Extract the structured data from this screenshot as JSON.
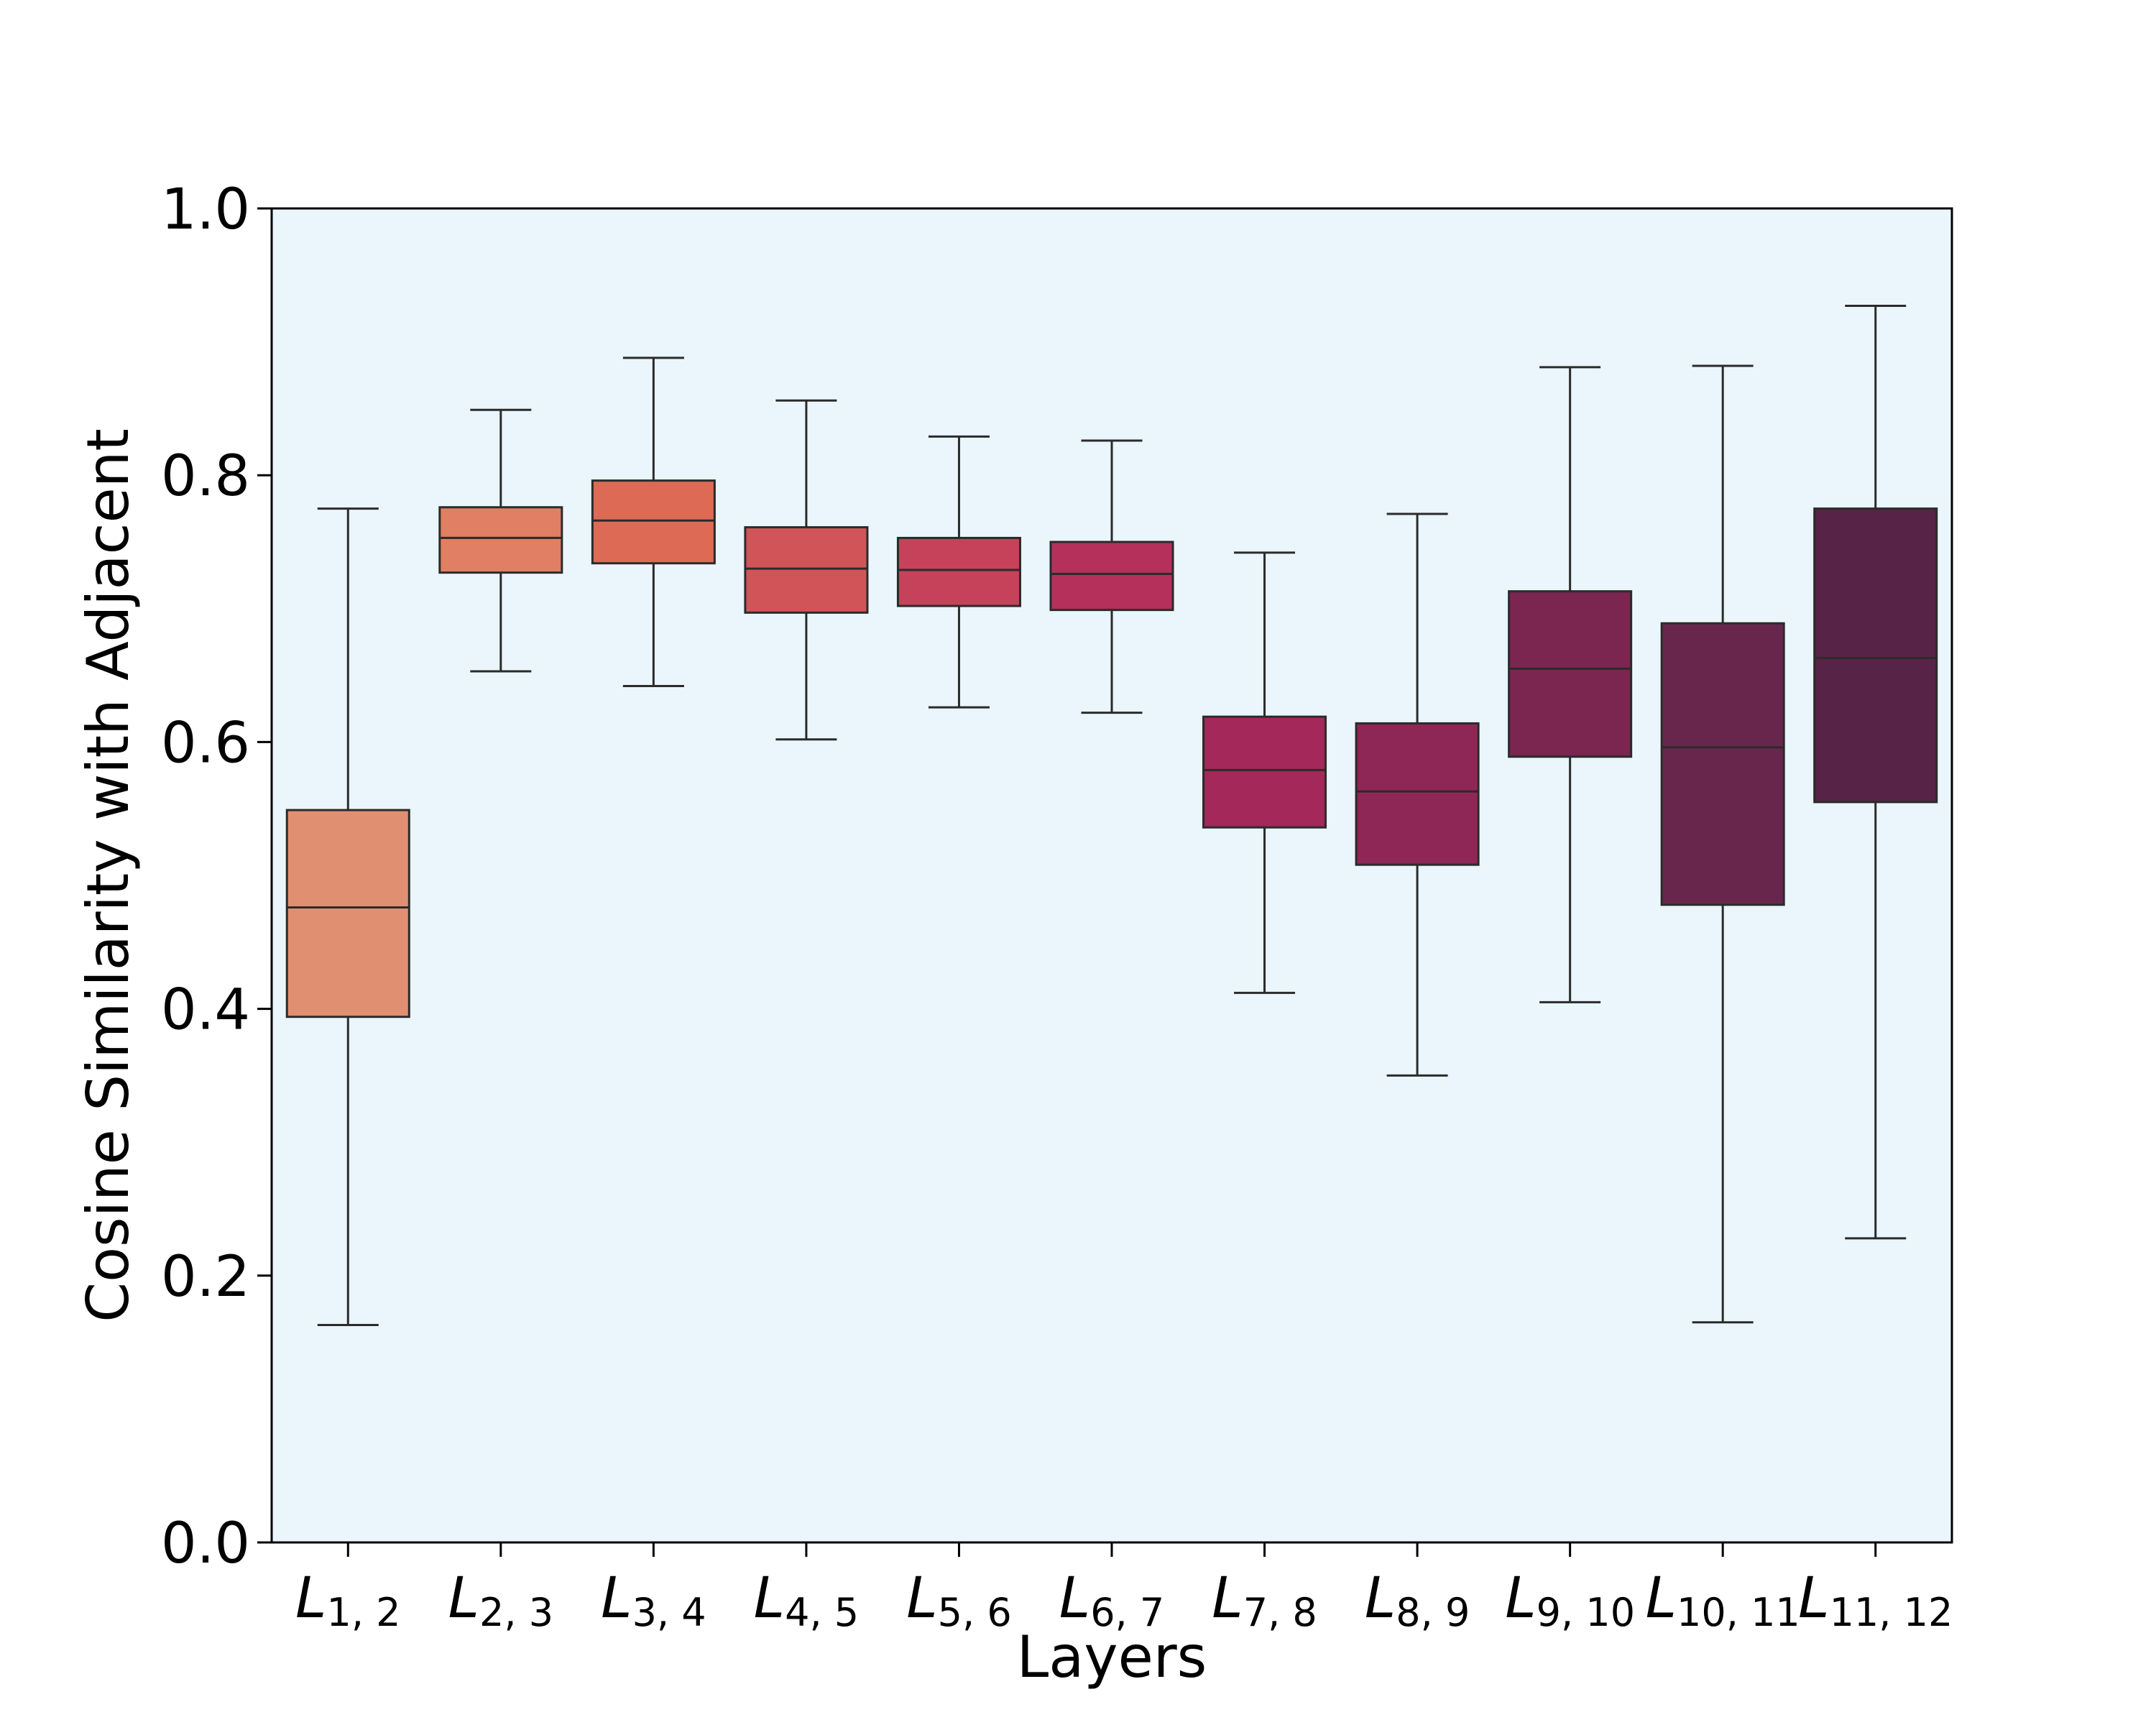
{
  "chart_data": {
    "type": "box",
    "title": "",
    "xlabel": "Layers",
    "ylabel": "Cosine Similarity with Adjacent",
    "ylim": [
      0.0,
      1.0
    ],
    "yticks": [
      "0.0",
      "0.2",
      "0.4",
      "0.6",
      "0.8",
      "1.0"
    ],
    "categories": [
      {
        "main": "L",
        "sub": "1, 2"
      },
      {
        "main": "L",
        "sub": "2, 3"
      },
      {
        "main": "L",
        "sub": "3, 4"
      },
      {
        "main": "L",
        "sub": "4, 5"
      },
      {
        "main": "L",
        "sub": "5, 6"
      },
      {
        "main": "L",
        "sub": "6, 7"
      },
      {
        "main": "L",
        "sub": "7, 8"
      },
      {
        "main": "L",
        "sub": "8, 9"
      },
      {
        "main": "L",
        "sub": "9, 10"
      },
      {
        "main": "L",
        "sub": "10, 11"
      },
      {
        "main": "L",
        "sub": "11, 12"
      }
    ],
    "boxes": [
      {
        "whisker_low": 0.163,
        "q1": 0.394,
        "median": 0.476,
        "q3": 0.549,
        "whisker_high": 0.775,
        "color": "#e09070"
      },
      {
        "whisker_low": 0.653,
        "q1": 0.727,
        "median": 0.753,
        "q3": 0.776,
        "whisker_high": 0.849,
        "color": "#e07f63"
      },
      {
        "whisker_low": 0.642,
        "q1": 0.734,
        "median": 0.766,
        "q3": 0.796,
        "whisker_high": 0.888,
        "color": "#dc6a55"
      },
      {
        "whisker_low": 0.602,
        "q1": 0.697,
        "median": 0.73,
        "q3": 0.761,
        "whisker_high": 0.856,
        "color": "#d15558"
      },
      {
        "whisker_low": 0.626,
        "q1": 0.702,
        "median": 0.729,
        "q3": 0.753,
        "whisker_high": 0.829,
        "color": "#c5425a"
      },
      {
        "whisker_low": 0.622,
        "q1": 0.699,
        "median": 0.726,
        "q3": 0.75,
        "whisker_high": 0.826,
        "color": "#b5305b"
      },
      {
        "whisker_low": 0.412,
        "q1": 0.536,
        "median": 0.579,
        "q3": 0.619,
        "whisker_high": 0.742,
        "color": "#a4285a"
      },
      {
        "whisker_low": 0.35,
        "q1": 0.508,
        "median": 0.563,
        "q3": 0.614,
        "whisker_high": 0.771,
        "color": "#8f2756"
      },
      {
        "whisker_low": 0.405,
        "q1": 0.589,
        "median": 0.655,
        "q3": 0.713,
        "whisker_high": 0.881,
        "color": "#7b2551"
      },
      {
        "whisker_low": 0.165,
        "q1": 0.478,
        "median": 0.596,
        "q3": 0.689,
        "whisker_high": 0.882,
        "color": "#69264d"
      },
      {
        "whisker_low": 0.228,
        "q1": 0.555,
        "median": 0.663,
        "q3": 0.775,
        "whisker_high": 0.927,
        "color": "#572447"
      }
    ],
    "colors": {
      "plot_background": "#eaf6fc",
      "axis": "#000000",
      "edge": "#2b2b2b"
    }
  }
}
